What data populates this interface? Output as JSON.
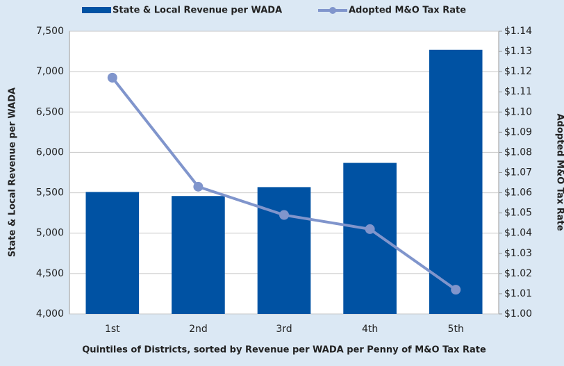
{
  "chart_data": {
    "type": "bar_line",
    "x_label": "Quintiles of Districts, sorted by Revenue per WADA per Penny of M&O Tax Rate",
    "y_label": "State & Local Revenue per WADA",
    "y2_label": "Adopted M&O Tax Rate",
    "categories": [
      "1st",
      "2nd",
      "3rd",
      "4th",
      "5th"
    ],
    "series": [
      {
        "name": "State & Local Revenue per WADA",
        "type": "bar",
        "color": "#0052a3",
        "values": [
          5510,
          5460,
          5570,
          5870,
          7270
        ]
      },
      {
        "name": "Adopted M&O Tax Rate",
        "type": "line",
        "axis": "y2",
        "color": "#8095cc",
        "values": [
          1.117,
          1.063,
          1.049,
          1.042,
          1.012
        ]
      }
    ],
    "ylim": [
      4000,
      7500
    ],
    "yticks": [
      {
        "value": 4000,
        "label": "4,000"
      },
      {
        "value": 4500,
        "label": "4,500"
      },
      {
        "value": 5000,
        "label": "5,000"
      },
      {
        "value": 5500,
        "label": "5,500"
      },
      {
        "value": 6000,
        "label": "6,000"
      },
      {
        "value": 6500,
        "label": "6,500"
      },
      {
        "value": 7000,
        "label": "7,000"
      },
      {
        "value": 7500,
        "label": "7,500"
      }
    ],
    "y2lim": [
      1.0,
      1.14
    ],
    "y2ticks": [
      {
        "value": 1.0,
        "label": "$1.00"
      },
      {
        "value": 1.01,
        "label": "$1.01"
      },
      {
        "value": 1.02,
        "label": "$1.02"
      },
      {
        "value": 1.03,
        "label": "$1.03"
      },
      {
        "value": 1.04,
        "label": "$1.04"
      },
      {
        "value": 1.05,
        "label": "$1.05"
      },
      {
        "value": 1.06,
        "label": "$1.06"
      },
      {
        "value": 1.07,
        "label": "$1.07"
      },
      {
        "value": 1.08,
        "label": "$1.08"
      },
      {
        "value": 1.09,
        "label": "$1.09"
      },
      {
        "value": 1.1,
        "label": "$1.10"
      },
      {
        "value": 1.11,
        "label": "$1.11"
      },
      {
        "value": 1.12,
        "label": "$1.12"
      },
      {
        "value": 1.13,
        "label": "$1.13"
      },
      {
        "value": 1.14,
        "label": "$1.14"
      }
    ],
    "grid": true
  }
}
